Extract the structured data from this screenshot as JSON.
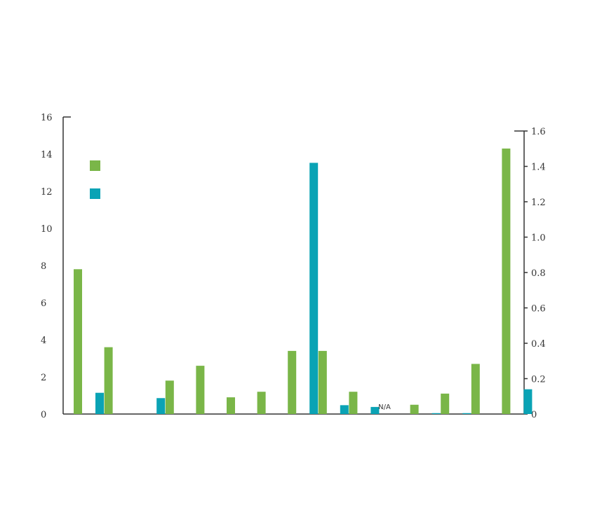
{
  "chart_data": {
    "type": "bar",
    "title": "",
    "xlabel": "",
    "ylabel": "",
    "categories": [
      "",
      "",
      "",
      "",
      "",
      "",
      "",
      "",
      "",
      "",
      "",
      "",
      "",
      "",
      ""
    ],
    "series": [
      {
        "axis": "left",
        "color": "#7ab648",
        "values": [
          7.8,
          3.6,
          null,
          1.8,
          2.6,
          0.9,
          1.2,
          3.4,
          3.4,
          1.2,
          null,
          0.5,
          1.1,
          2.7,
          14.3
        ]
      },
      {
        "axis": "right",
        "color": "#0aa3b5",
        "values": [
          0.12,
          null,
          0.09,
          null,
          null,
          null,
          null,
          1.42,
          0.05,
          0.04,
          null,
          0.005,
          0.005,
          null,
          0.14
        ]
      }
    ],
    "ylim_left": [
      0,
      16
    ],
    "ylim_right": [
      0,
      1.6
    ],
    "yticks_left": [
      "0",
      "2",
      "4",
      "6",
      "8",
      "10",
      "12",
      "14",
      "16"
    ],
    "yticks_right": [
      "0",
      "0.2",
      "0.4",
      "0.6",
      "0.8",
      "1.0",
      "1.2",
      "1.4",
      "1.6"
    ],
    "annotations": [
      {
        "category_index": 10,
        "text": "N/A"
      }
    ],
    "legend": {
      "placement": "top-left",
      "entries": [
        {
          "color": "#7ab648"
        },
        {
          "color": "#0aa3b5"
        }
      ]
    },
    "grid": false
  }
}
